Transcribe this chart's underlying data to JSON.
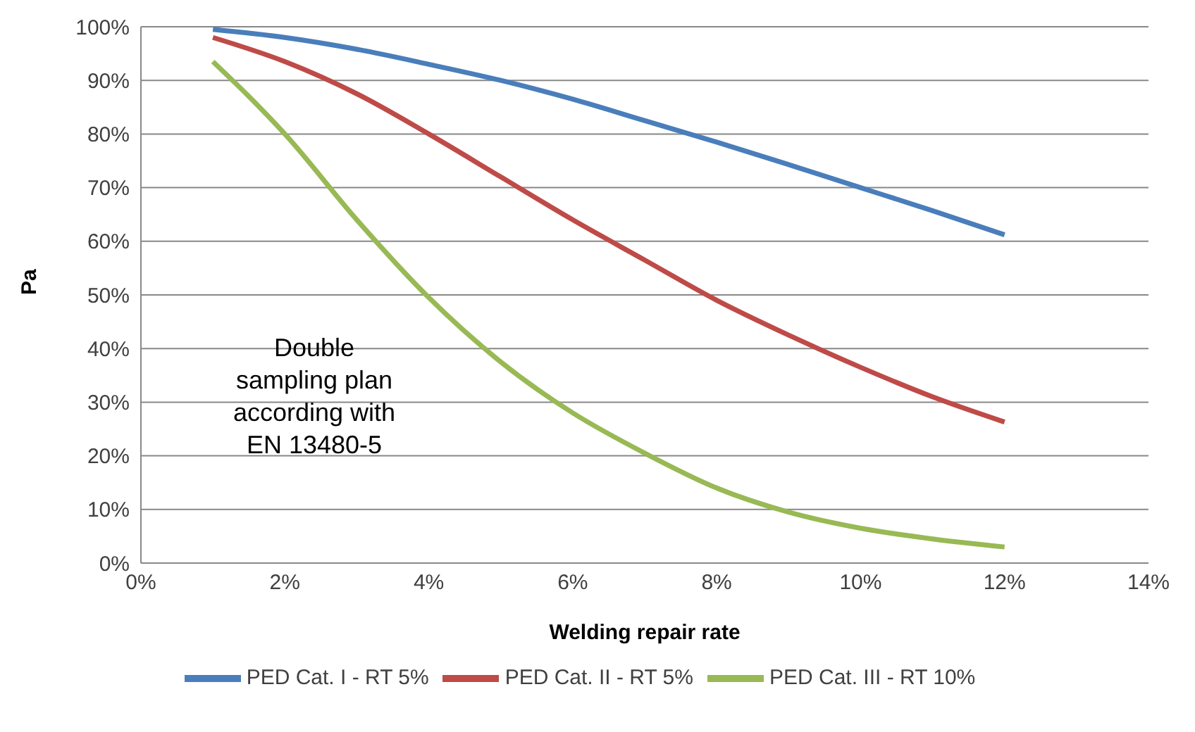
{
  "chart_data": {
    "type": "line",
    "xlabel": "Welding repair rate",
    "ylabel": "Pa",
    "annotations": [
      "Double\nsampling plan\naccording with\nEN 13480-5"
    ],
    "xlim": [
      0,
      14
    ],
    "xticks": [
      {
        "value": 0,
        "label": "0%"
      },
      {
        "value": 2,
        "label": "2%"
      },
      {
        "value": 4,
        "label": "4%"
      },
      {
        "value": 6,
        "label": "6%"
      },
      {
        "value": 8,
        "label": "8%"
      },
      {
        "value": 10,
        "label": "10%"
      },
      {
        "value": 12,
        "label": "12%"
      },
      {
        "value": 14,
        "label": "14%"
      }
    ],
    "ylim": [
      0,
      100
    ],
    "yticks": [
      {
        "value": 0,
        "label": "0%"
      },
      {
        "value": 10,
        "label": "10%"
      },
      {
        "value": 20,
        "label": "20%"
      },
      {
        "value": 30,
        "label": "30%"
      },
      {
        "value": 40,
        "label": "40%"
      },
      {
        "value": 50,
        "label": "50%"
      },
      {
        "value": 60,
        "label": "60%"
      },
      {
        "value": 70,
        "label": "70%"
      },
      {
        "value": 80,
        "label": "80%"
      },
      {
        "value": 90,
        "label": "90%"
      },
      {
        "value": 100,
        "label": "100%"
      }
    ],
    "grid": "y",
    "legend": "bottom",
    "marker": "none",
    "line_style": "solid",
    "series": [
      {
        "name": "PED Cat. I - RT 5%",
        "color": "#4a7ebb",
        "x": [
          1,
          2,
          3,
          4,
          5,
          6,
          7,
          8,
          9,
          10,
          11,
          12
        ],
        "values": [
          99.5,
          98,
          95.8,
          93,
          90,
          86.5,
          82.5,
          78.5,
          74.3,
          70,
          65.7,
          61.2
        ]
      },
      {
        "name": "PED Cat. II - RT 5%",
        "color": "#be4b48",
        "x": [
          1,
          2,
          3,
          4,
          5,
          6,
          7,
          8,
          9,
          10,
          11,
          12
        ],
        "values": [
          98,
          93.5,
          87.5,
          80,
          72,
          64,
          56.5,
          49,
          42.5,
          36.5,
          31,
          26.3
        ]
      },
      {
        "name": "PED Cat. III - RT 10%",
        "color": "#98b954",
        "x": [
          1,
          1.5,
          2,
          3,
          4,
          5,
          6,
          7,
          8,
          9,
          10,
          11,
          12
        ],
        "values": [
          93.5,
          87,
          80,
          64,
          49.5,
          37.5,
          28,
          20.5,
          14,
          9.5,
          6.5,
          4.5,
          3
        ]
      }
    ]
  }
}
